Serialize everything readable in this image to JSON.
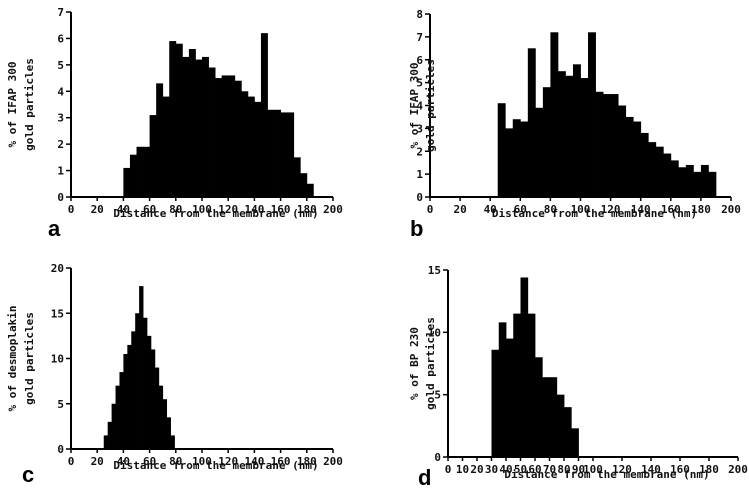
{
  "colors": {
    "bars": "#000000",
    "axes": "#000000",
    "background": "#ffffff"
  },
  "chart_data": [
    {
      "type": "bar",
      "panel": "a",
      "xlabel": "Distance from the membrane (nm)",
      "ylabel": [
        "% of IFAP 300",
        "gold particles"
      ],
      "xlim": [
        0,
        200
      ],
      "ylim": [
        0,
        7
      ],
      "xticks": [
        0,
        20,
        40,
        60,
        80,
        100,
        120,
        140,
        160,
        180,
        200
      ],
      "yticks": [
        0,
        1,
        2,
        3,
        4,
        5,
        6,
        7
      ],
      "bin_width": 5,
      "x": [
        40,
        45,
        50,
        55,
        60,
        65,
        70,
        75,
        80,
        85,
        90,
        95,
        100,
        105,
        110,
        115,
        120,
        125,
        130,
        135,
        140,
        145,
        150,
        155,
        160,
        165,
        170,
        175,
        180
      ],
      "values": [
        1.1,
        1.6,
        1.9,
        1.9,
        3.1,
        4.3,
        3.8,
        5.9,
        5.8,
        5.3,
        5.6,
        5.2,
        5.3,
        4.9,
        4.5,
        4.6,
        4.6,
        4.4,
        4.0,
        3.8,
        3.6,
        6.2,
        3.3,
        3.3,
        3.2,
        3.2,
        1.5,
        0.9,
        0.5
      ]
    },
    {
      "type": "bar",
      "panel": "b",
      "xlabel": "Distance from the membrane (nm)",
      "ylabel": [
        "% of IFAP 300",
        "gold particles"
      ],
      "xlim": [
        0,
        200
      ],
      "ylim": [
        0,
        8
      ],
      "xticks": [
        0,
        20,
        40,
        60,
        80,
        100,
        120,
        140,
        160,
        180,
        200
      ],
      "yticks": [
        0,
        1,
        2,
        3,
        4,
        5,
        6,
        7,
        8
      ],
      "bin_width": 5,
      "x": [
        45,
        50,
        55,
        60,
        65,
        70,
        75,
        80,
        85,
        90,
        95,
        100,
        105,
        110,
        115,
        120,
        125,
        130,
        135,
        140,
        145,
        150,
        155,
        160,
        165,
        170,
        175,
        180,
        185
      ],
      "values": [
        4.1,
        3.0,
        3.4,
        3.3,
        6.5,
        3.9,
        4.8,
        7.2,
        5.5,
        5.3,
        5.8,
        5.2,
        7.2,
        4.6,
        4.5,
        4.5,
        4.0,
        3.5,
        3.3,
        2.8,
        2.4,
        2.2,
        1.9,
        1.6,
        1.3,
        1.4,
        1.1,
        1.4,
        1.1
      ]
    },
    {
      "type": "bar",
      "panel": "c",
      "xlabel": "Distance from the membrane (nm)",
      "ylabel": [
        "% of desmoplakin",
        "gold particles"
      ],
      "xlim": [
        0,
        200
      ],
      "ylim": [
        0,
        20
      ],
      "xticks": [
        0,
        20,
        40,
        60,
        80,
        100,
        120,
        140,
        160,
        180,
        200
      ],
      "yticks": [
        0,
        5,
        10,
        15,
        20
      ],
      "bin_width": 3,
      "x": [
        25,
        28,
        31,
        34,
        37,
        40,
        43,
        46,
        49,
        52,
        55,
        58,
        61,
        64,
        67,
        70,
        73,
        76
      ],
      "values": [
        1.5,
        3.0,
        5.0,
        7.0,
        8.5,
        10.5,
        11.5,
        13.0,
        15.0,
        18.0,
        14.5,
        12.5,
        11.0,
        9.0,
        7.0,
        5.5,
        3.5,
        1.5
      ]
    },
    {
      "type": "bar",
      "panel": "d",
      "xlabel": "Distance from the membrane (nm)",
      "ylabel": [
        "% of BP 230",
        "gold particles"
      ],
      "xlim": [
        0,
        200
      ],
      "ylim": [
        0,
        15
      ],
      "xticks": [
        0,
        10,
        20,
        30,
        40,
        50,
        60,
        70,
        80,
        90,
        100,
        120,
        140,
        160,
        180,
        200
      ],
      "yticks": [
        0,
        5,
        10,
        15
      ],
      "bin_width": 5,
      "x": [
        30,
        35,
        40,
        45,
        50,
        55,
        60,
        65,
        70,
        75,
        80,
        85
      ],
      "values": [
        8.6,
        10.8,
        9.5,
        11.5,
        14.4,
        11.5,
        8.0,
        6.4,
        6.4,
        5.0,
        4.0,
        2.3
      ]
    }
  ]
}
